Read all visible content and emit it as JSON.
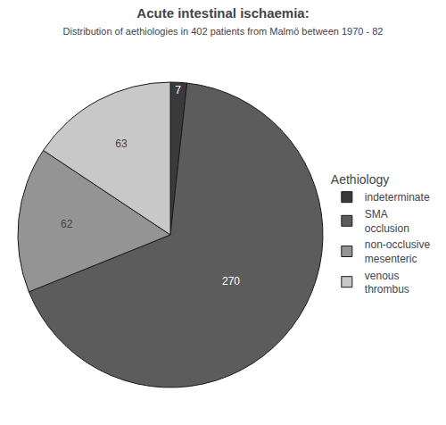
{
  "chart_data": {
    "type": "pie",
    "title": "Acute intestinal ischaemia:",
    "subtitle": "Distribution of aethiologies in 402 patients from Malmö between 1970 - 82",
    "legend_title": "Aethiology",
    "categories": [
      "indeterminate",
      "SMA\nocclusion",
      "non-occlusive\nmesenteric",
      "venous\nthrombus"
    ],
    "values": [
      7,
      270,
      62,
      63
    ],
    "colors": [
      "#3a3a3a",
      "#5c5c5c",
      "#949494",
      "#c8c8c8"
    ],
    "data_labels": true,
    "legend": "right"
  }
}
